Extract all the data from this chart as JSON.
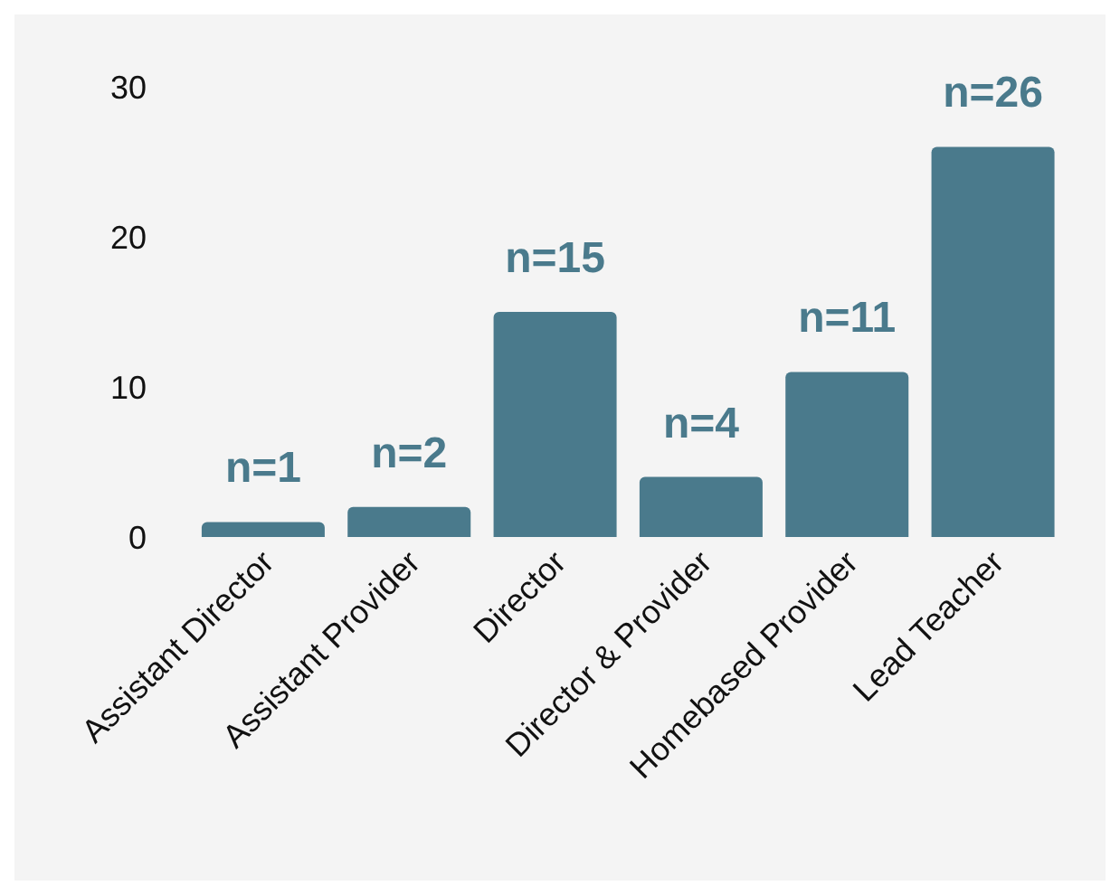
{
  "chart_data": {
    "type": "bar",
    "categories": [
      "Assistant Director",
      "Assistant Provider",
      "Director",
      "Director & Provider",
      "Homebased Provider",
      "Lead Teacher"
    ],
    "values": [
      1,
      2,
      15,
      4,
      11,
      26
    ],
    "value_labels": [
      "n=1",
      "n=2",
      "n=15",
      "n=4",
      "n=11",
      "n=26"
    ],
    "color": "#4a7a8c",
    "ylim": [
      0,
      30
    ],
    "yticks": [
      0,
      10,
      20,
      30
    ],
    "grid": false,
    "legend": false
  }
}
